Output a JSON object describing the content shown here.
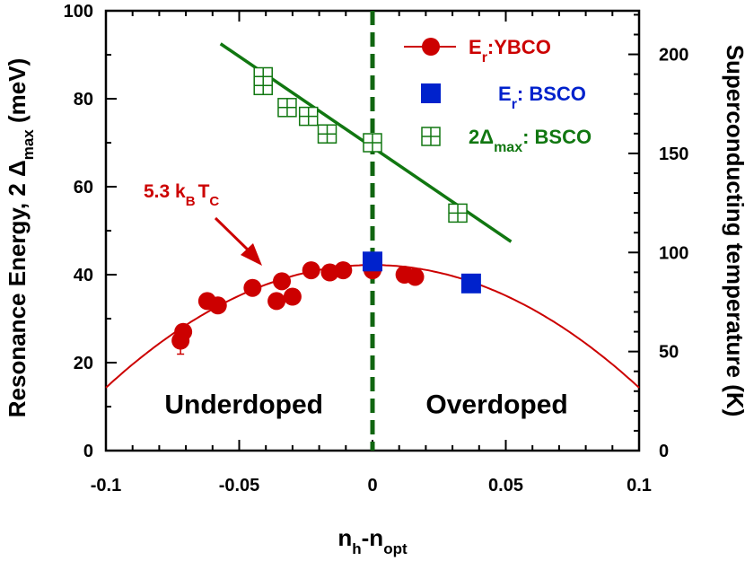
{
  "chart_data": {
    "type": "scatter",
    "xlabel_main": "n",
    "xlabel_sub1": "h",
    "xlabel_mid": "-n",
    "xlabel_sub2": "opt",
    "ylabel_left": "Resonance Energy, 2 Δ",
    "ylabel_left_sub": "max",
    "ylabel_left_unit": " (meV)",
    "ylabel_right": "Superconducting temperature (K)",
    "xlim": [
      -0.1,
      0.1
    ],
    "ylim_left": [
      0,
      100
    ],
    "ylim_right": [
      0,
      222
    ],
    "x_ticks": [
      {
        "value": -0.1,
        "label": "-0.1"
      },
      {
        "value": -0.05,
        "label": "-0.05"
      },
      {
        "value": 0,
        "label": "0"
      },
      {
        "value": 0.05,
        "label": "0.05"
      },
      {
        "value": 0.1,
        "label": "0.1"
      }
    ],
    "y_left_ticks": [
      {
        "value": 0,
        "label": "0"
      },
      {
        "value": 20,
        "label": "20"
      },
      {
        "value": 40,
        "label": "40"
      },
      {
        "value": 60,
        "label": "60"
      },
      {
        "value": 80,
        "label": "80"
      },
      {
        "value": 100,
        "label": "100"
      }
    ],
    "y_right_ticks": [
      {
        "value": 0,
        "label": "0"
      },
      {
        "value": 50,
        "label": "50"
      },
      {
        "value": 100,
        "label": "100"
      },
      {
        "value": 150,
        "label": "150"
      },
      {
        "value": 200,
        "label": "200"
      }
    ],
    "series": [
      {
        "name": "E_r:YBCO",
        "legend_main": "E",
        "legend_sub": "r",
        "legend_rest": ":YBCO",
        "color": "#cc0000",
        "marker": "circle",
        "points": [
          [
            -0.072,
            25
          ],
          [
            -0.071,
            27
          ],
          [
            -0.062,
            34
          ],
          [
            -0.058,
            33
          ],
          [
            -0.045,
            37
          ],
          [
            -0.036,
            34
          ],
          [
            -0.034,
            38.5
          ],
          [
            -0.03,
            35
          ],
          [
            -0.023,
            41
          ],
          [
            -0.016,
            40.5
          ],
          [
            -0.011,
            41
          ],
          [
            0.0,
            41
          ],
          [
            0.012,
            40
          ],
          [
            0.016,
            39.5
          ]
        ]
      },
      {
        "name": "E_r: BSCO",
        "legend_main": "E",
        "legend_sub": "r",
        "legend_rest": ": BSCO",
        "color": "#0022cc",
        "marker": "square",
        "points": [
          [
            0.0,
            43
          ],
          [
            0.037,
            38
          ]
        ]
      },
      {
        "name": "2Δ_max: BSCO",
        "legend_main": "2Δ",
        "legend_sub": "max",
        "legend_rest": ": BSCO",
        "color": "#117711",
        "marker": "boxed-plus",
        "points": [
          [
            -0.041,
            85
          ],
          [
            -0.041,
            83
          ],
          [
            -0.032,
            78
          ],
          [
            -0.024,
            76
          ],
          [
            -0.017,
            72
          ],
          [
            0.0,
            70
          ],
          [
            0.032,
            54
          ]
        ]
      }
    ],
    "fits": [
      {
        "kind": "parabola",
        "color": "#cc0000",
        "vertex_x": 0,
        "vertex_y": 42.2,
        "x_at_zero": 0.123
      },
      {
        "kind": "line",
        "color": "#117711",
        "from": [
          -0.057,
          92.5
        ],
        "to": [
          0.052,
          47.5
        ]
      }
    ],
    "vline": {
      "x": 0,
      "color": "#116611",
      "style": "dashed"
    },
    "regions": [
      {
        "label": "Underdoped",
        "x": -0.078,
        "y": 8.5
      },
      {
        "label": "Overdoped",
        "x": 0.02,
        "y": 8.5
      }
    ],
    "annotation": {
      "text_main": "5.3 k",
      "sub1": "B",
      "text_mid": "T",
      "sub2": "C",
      "color": "#cc0000"
    },
    "grid": false,
    "legend_position": "top-right"
  }
}
